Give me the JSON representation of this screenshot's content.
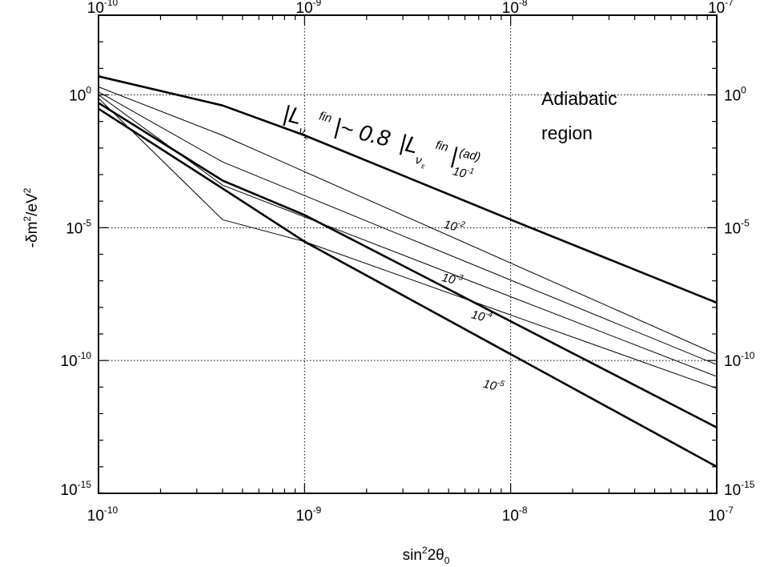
{
  "chart_data": {
    "type": "line",
    "xlabel": {
      "base": "sin",
      "sup": "2",
      "mid": "2θ",
      "sub": "0"
    },
    "ylabel": {
      "pre": "-δm",
      "sup1": "2",
      "mid": "/eV",
      "sup2": "2"
    },
    "x_scale": "log",
    "y_scale": "log",
    "xlim": [
      1e-10,
      1e-07
    ],
    "ylim": [
      1e-15,
      1000.0
    ],
    "x_ticks": [
      {
        "base": "10",
        "exp": "-10",
        "value": 1e-10
      },
      {
        "base": "10",
        "exp": "-9",
        "value": 1e-09
      },
      {
        "base": "10",
        "exp": "-8",
        "value": 1e-08
      },
      {
        "base": "10",
        "exp": "-7",
        "value": 1e-07
      }
    ],
    "y_ticks": [
      {
        "base": "10",
        "exp": "0",
        "value": 1
      },
      {
        "base": "10",
        "exp": "-5",
        "value": 1e-05
      },
      {
        "base": "10",
        "exp": "-10",
        "value": 1e-10
      },
      {
        "base": "10",
        "exp": "-15",
        "value": 1e-15
      }
    ],
    "grid": true,
    "series": [
      {
        "style": "bold",
        "x": [
          1e-10,
          4e-10,
          1e-09,
          1e-08,
          1e-07
        ],
        "y": [
          5.0,
          0.4,
          0.03,
          2e-05,
          1.5e-08
        ]
      },
      {
        "style": "thin",
        "x": [
          1e-10,
          4e-10,
          1e-07
        ],
        "y": [
          2.0,
          0.03,
          1.7e-10
        ]
      },
      {
        "style": "thin",
        "x": [
          1e-10,
          4e-10,
          1e-07
        ],
        "y": [
          1.3,
          0.003,
          7e-11
        ]
      },
      {
        "style": "thin",
        "x": [
          1e-10,
          4e-10,
          1e-07
        ],
        "y": [
          1.0,
          0.0004,
          2.5e-11
        ]
      },
      {
        "style": "thin",
        "x": [
          1e-10,
          4e-10,
          1e-09,
          1e-07
        ],
        "y": [
          0.75,
          2e-05,
          3e-06,
          9e-12
        ]
      },
      {
        "style": "bold",
        "x": [
          1e-10,
          4e-10,
          1e-09,
          1e-07
        ],
        "y": [
          0.5,
          0.0006,
          3e-05,
          3e-13
        ]
      },
      {
        "style": "bold",
        "x": [
          1e-10,
          4e-10,
          1e-09,
          1e-07
        ],
        "y": [
          0.3,
          0.0003,
          3e-06,
          1e-14
        ]
      }
    ],
    "contour_labels": [
      {
        "base": "10",
        "exp": "-1",
        "x": 5.2e-09,
        "y": 0.001,
        "rotate": 14
      },
      {
        "base": "10",
        "exp": "-2",
        "x": 4.7e-09,
        "y": 1e-05,
        "rotate": 14
      },
      {
        "base": "10",
        "exp": "-3",
        "x": 4.6e-09,
        "y": 1e-07,
        "rotate": 14
      },
      {
        "base": "10",
        "exp": "-4",
        "x": 6.4e-09,
        "y": 4e-09,
        "rotate": 14
      },
      {
        "base": "10",
        "exp": "-5",
        "x": 7.3e-09,
        "y": 1e-11,
        "rotate": 14
      }
    ],
    "annotations": {
      "region_line1": "Adiabatic",
      "region_line2": "region",
      "formula": {
        "bar": "|",
        "L": "L",
        "nu": "ν",
        "e": "e",
        "fin": "fin",
        "approx": "~ 0.8",
        "eps": "ε",
        "ad": "(ad)"
      }
    }
  }
}
